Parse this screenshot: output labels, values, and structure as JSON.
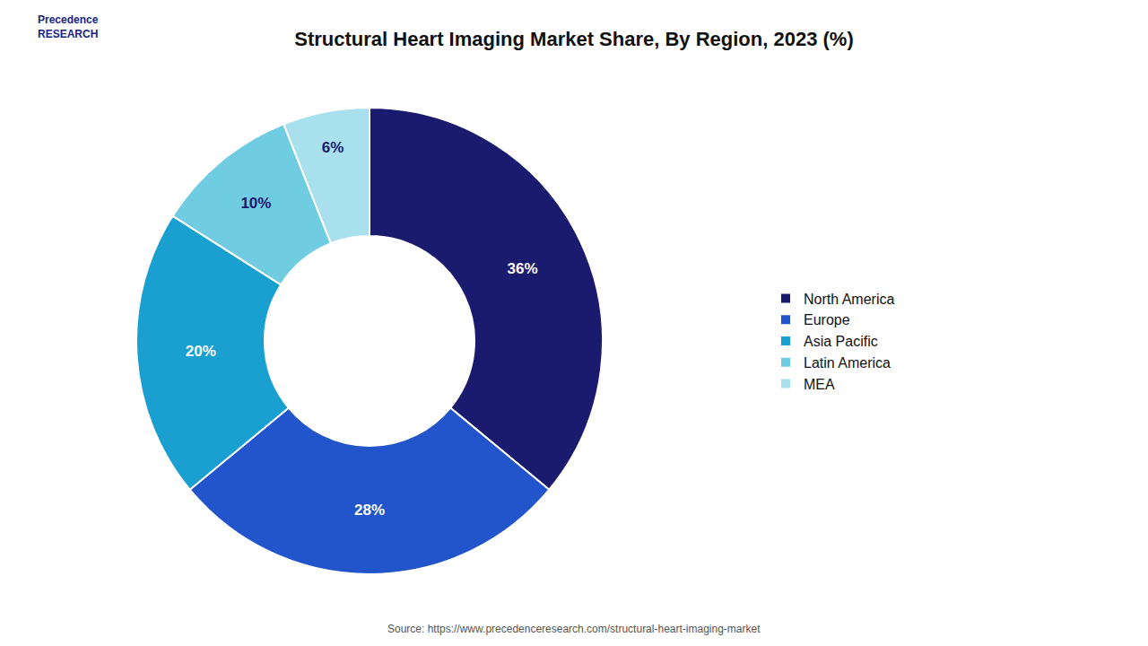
{
  "chart_data": {
    "type": "donut",
    "title": "Structural Heart Imaging Market Share, By Region, 2023 (%)",
    "categories": [
      "North America",
      "Europe",
      "Asia Pacific",
      "Latin America",
      "MEA"
    ],
    "values": [
      36,
      28,
      20,
      10,
      6
    ],
    "value_labels": [
      "36%",
      "28%",
      "20%",
      "10%",
      "6%"
    ],
    "colors": [
      "#1a1a6e",
      "#2255cc",
      "#1aa0d0",
      "#70cce0",
      "#a8e0ee"
    ],
    "data_labels": true,
    "legend": "right",
    "annotations": [
      "Precedence\nRESEARCH",
      "Source: https://www.precedenceresearch.com/structural-heart-imaging-market"
    ]
  }
}
